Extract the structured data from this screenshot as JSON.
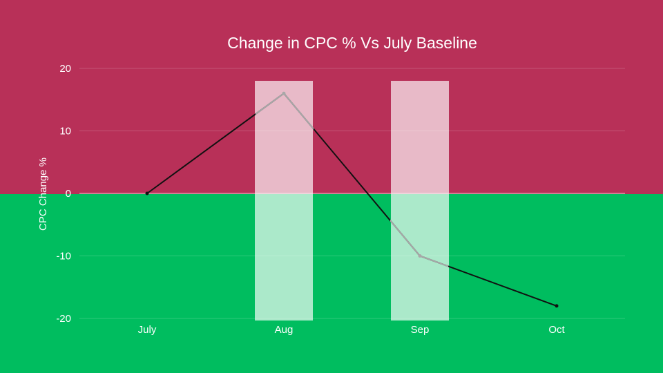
{
  "chart_data": {
    "type": "line",
    "title": "Change in CPC % Vs July Baseline",
    "xlabel": "",
    "ylabel": "CPC Change %",
    "categories": [
      "July",
      "Aug",
      "Sep",
      "Oct"
    ],
    "series": [
      {
        "values": [
          0,
          16,
          -10,
          -18
        ]
      }
    ],
    "highlighted_categories": [
      "Aug",
      "Sep"
    ],
    "ylim": [
      -20,
      20
    ],
    "yticks": [
      20,
      10,
      0,
      -10,
      -20
    ],
    "ytick_labels": [
      "20",
      "10",
      "0",
      "-10",
      "-20"
    ],
    "grid": true,
    "legend": "none"
  },
  "colors": {
    "positive_zone": "#b83058",
    "negative_zone": "#00bd5f",
    "line": "#111111",
    "line_in_highlight": "#a8a8a8",
    "highlight_band": "#ffffff",
    "text": "#ffffff"
  }
}
